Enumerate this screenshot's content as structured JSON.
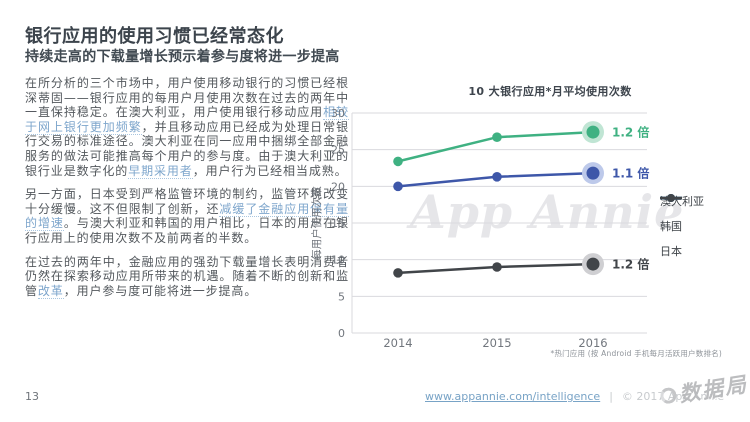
{
  "header": {
    "title": "银行应用的使用习惯已经常态化",
    "subtitle": "持续走高的下载量增长预示着参与度将进一步提高"
  },
  "article": {
    "paragraphs": [
      [
        {
          "text": "在所分析的三个市场中，用户使用移动银行的习惯已经根深蒂固——银行应用的每用户月使用次数在过去的两年中一直保持稳定。在澳大利亚，用户使用银行移动应用",
          "link": false
        },
        {
          "text": "相较于网上银行更加频繁",
          "link": true
        },
        {
          "text": "，并且移动应用已经成为处理日常银行交易的标准途径。澳大利亚在同一应用中捆绑全部金融服务的做法可能推高每个用户的参与度。由于澳大利亚的银行业是数字化的",
          "link": false
        },
        {
          "text": "早期采用者",
          "link": true
        },
        {
          "text": "，用户行为已经相当成熟。",
          "link": false
        }
      ],
      [
        {
          "text": "另一方面，日本受到严格监管环境的制约，监管环境改变十分缓慢。这不但限制了创新，还",
          "link": false
        },
        {
          "text": "减缓了金融应用保有量的增速",
          "link": true
        },
        {
          "text": "。与澳大利亚和韩国的用户相比，日本的用户在银行应用上的使用次数不及前两者的半数。",
          "link": false
        }
      ],
      [
        {
          "text": "在过去的两年中，金融应用的强劲下载量增长表明消费者仍然在探索移动应用所带来的机遇。随着不断的创新和监管",
          "link": false
        },
        {
          "text": "改革",
          "link": true
        },
        {
          "text": "，用户参与度可能将进一步提高。",
          "link": false
        }
      ]
    ]
  },
  "chart_data": {
    "type": "line",
    "title": "10 大银行应用*月平均使用次数",
    "ylabel": "每用户使用次数",
    "x": [
      "2014",
      "2015",
      "2016"
    ],
    "ylim": [
      0,
      30
    ],
    "ytick_step": 5,
    "grid": true,
    "legend_position": "right",
    "series": [
      {
        "name": "澳大利亚",
        "values": [
          23.4,
          26.7,
          27.4
        ],
        "color": "#3FB182",
        "halo": "#C0E5D4",
        "multiplier_label": "1.2 倍"
      },
      {
        "name": "韩国",
        "values": [
          20.0,
          21.3,
          21.8
        ],
        "color": "#3E57A9",
        "halo": "#BDC9EA",
        "multiplier_label": "1.1 倍"
      },
      {
        "name": "日本",
        "values": [
          8.2,
          9.0,
          9.4
        ],
        "color": "#414549",
        "halo": "#CFCFD2",
        "multiplier_label": "1.2 倍"
      }
    ],
    "footnote": "*热门应用 (按 Android 手机每月活跃用户数排名)",
    "watermark": "App Annie"
  },
  "footer": {
    "page_number": "13",
    "url": "www.appannie.com/intelligence",
    "separator": "|",
    "copyright": "© 2017 App Annie",
    "brand_watermark": "数据局"
  },
  "colors": {
    "grid": "#dadade",
    "tick_text": "#71767d",
    "accent_green": "#3FB182",
    "accent_blue": "#3E57A9",
    "accent_dark": "#414549"
  }
}
